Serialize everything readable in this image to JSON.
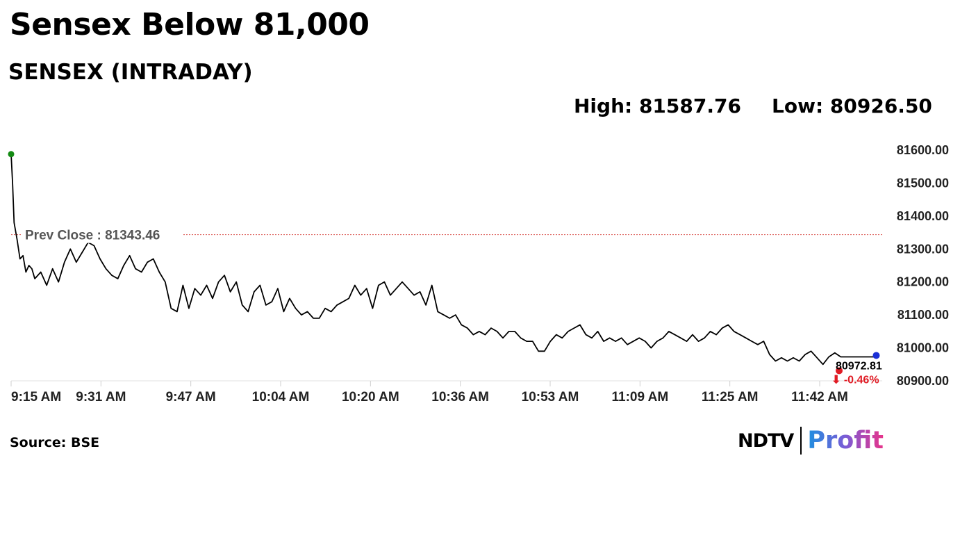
{
  "header": {
    "title": "Sensex Below 81,000",
    "subtitle": "SENSEX (INTRADAY)",
    "high_text": "High: 81587.76",
    "low_text": "Low: 80926.50"
  },
  "footer": {
    "source": "Source: BSE",
    "logo_ndtv": "NDTV",
    "logo_profit": "Profit"
  },
  "chart_data": {
    "type": "line",
    "title": "SENSEX (INTRADAY)",
    "x_label": "",
    "y_label": "",
    "x_ticks": [
      "9:15 AM",
      "9:31 AM",
      "9:47 AM",
      "10:04 AM",
      "10:20 AM",
      "10:36 AM",
      "10:53 AM",
      "11:09 AM",
      "11:25 AM",
      "11:42 AM"
    ],
    "y_ticks": [
      "81600.00",
      "81500.00",
      "81400.00",
      "81300.00",
      "81200.00",
      "81100.00",
      "81000.00",
      "80900.00"
    ],
    "ylim": [
      80900,
      81600
    ],
    "x_range_minutes": [
      0,
      147
    ],
    "grid": false,
    "line_color": "#000000",
    "prev_close": {
      "label": "Prev Close : 81343.46",
      "value": 81343.46,
      "color": "#d9534f"
    },
    "start_marker": {
      "minute": 0,
      "value": 81587.76,
      "color": "#138a13"
    },
    "last_value": {
      "label": "80972.81",
      "value": 80972.81,
      "change_label": "⬇ -0.46%",
      "change_color": "#e01b24",
      "marker_color": "#e01b24"
    },
    "end_marker": {
      "minute": 146,
      "value": 80972.81,
      "color": "#1a2fd6"
    },
    "series": [
      {
        "x_minutes": [
          0,
          0.25,
          0.5,
          1,
          1.5,
          2,
          2.5,
          3,
          3.5,
          4,
          5,
          6,
          7,
          8,
          9,
          10,
          11,
          12,
          13,
          14,
          15,
          16,
          17,
          18,
          19,
          20,
          21,
          22,
          23,
          24,
          25,
          26,
          27,
          28,
          29,
          30,
          31,
          32,
          33,
          34,
          35,
          36,
          37,
          38,
          39,
          40,
          41,
          42,
          43,
          44,
          45,
          46,
          47,
          48,
          49,
          50,
          51,
          52,
          53,
          54,
          55,
          56,
          57,
          58,
          59,
          60,
          61,
          62,
          63,
          64,
          65,
          66,
          67,
          68,
          69,
          70,
          71,
          72,
          73,
          74,
          75,
          76,
          77,
          78,
          79,
          80,
          81,
          82,
          83,
          84,
          85,
          86,
          87,
          88,
          89,
          90,
          91,
          92,
          93,
          94,
          95,
          96,
          97,
          98,
          99,
          100,
          101,
          102,
          103,
          104,
          105,
          106,
          107,
          108,
          109,
          110,
          111,
          112,
          113,
          114,
          115,
          116,
          117,
          118,
          119,
          120,
          121,
          122,
          123,
          124,
          125,
          126,
          127,
          128,
          129,
          130,
          131,
          132,
          133,
          134,
          135,
          136,
          137,
          138,
          139,
          140,
          141,
          142,
          143,
          144,
          145,
          146
        ],
        "values": [
          81587.76,
          81500,
          81380,
          81330,
          81270,
          81280,
          81230,
          81250,
          81240,
          81210,
          81230,
          81190,
          81240,
          81200,
          81260,
          81300,
          81260,
          81290,
          81320,
          81310,
          81270,
          81240,
          81220,
          81210,
          81250,
          81280,
          81240,
          81230,
          81260,
          81270,
          81230,
          81200,
          81120,
          81110,
          81190,
          81120,
          81180,
          81160,
          81190,
          81150,
          81200,
          81220,
          81170,
          81200,
          81130,
          81110,
          81170,
          81190,
          81130,
          81140,
          81180,
          81110,
          81150,
          81120,
          81100,
          81110,
          81090,
          81090,
          81120,
          81110,
          81130,
          81140,
          81150,
          81190,
          81160,
          81180,
          81120,
          81190,
          81200,
          81160,
          81180,
          81200,
          81180,
          81160,
          81170,
          81130,
          81190,
          81110,
          81100,
          81090,
          81100,
          81070,
          81060,
          81040,
          81050,
          81040,
          81060,
          81050,
          81030,
          81050,
          81050,
          81030,
          81020,
          81020,
          80990,
          80990,
          81020,
          81040,
          81030,
          81050,
          81060,
          81070,
          81040,
          81030,
          81050,
          81020,
          81030,
          81020,
          81030,
          81010,
          81020,
          81030,
          81020,
          81000,
          81020,
          81030,
          81050,
          81040,
          81030,
          81020,
          81040,
          81020,
          81030,
          81050,
          81040,
          81060,
          81070,
          81050,
          81040,
          81030,
          81020,
          81010,
          81020,
          80980,
          80960,
          80970,
          80960,
          80970,
          80960,
          80980,
          80990,
          80970,
          80950,
          80972.81,
          80985,
          80972.81,
          80972.81,
          80972.81,
          80972.81,
          80972.81,
          80972.81,
          80972.81
        ]
      }
    ]
  }
}
